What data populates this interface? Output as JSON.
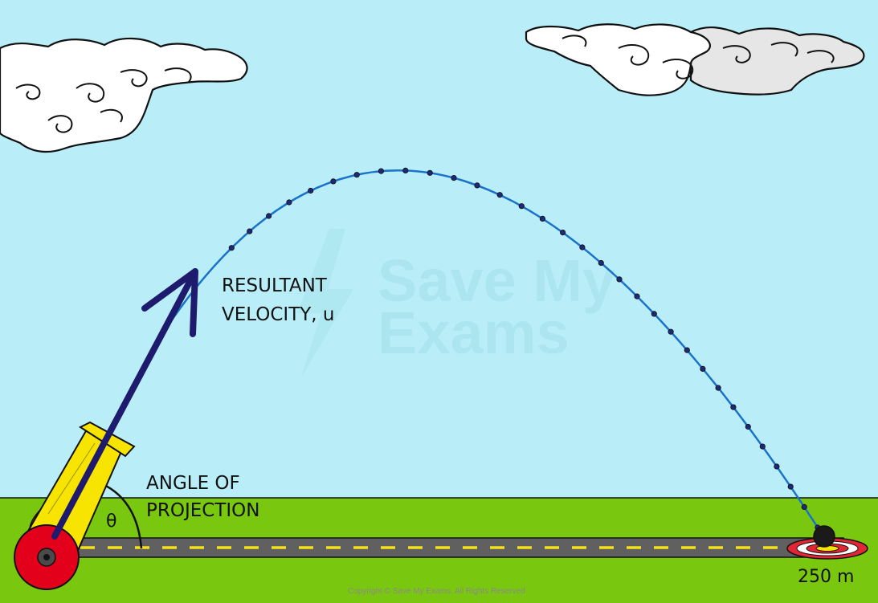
{
  "labels": {
    "velocity_line1": "RESULTANT",
    "velocity_line2": "VELOCITY, u",
    "angle_line1": "ANGLE  OF",
    "angle_line2": "PROJECTION",
    "theta": "θ",
    "distance": "250 m"
  },
  "watermark": {
    "line1": "Save My",
    "line2": "Exams"
  },
  "copyright": "Copyright © Save My Exams. All Rights Reserved",
  "colors": {
    "sky": "#b9eef8",
    "grass": "#7ac70f",
    "road": "#606060",
    "road_dash": "#f4e01c",
    "trajectory": "#1a73c8",
    "trajectory_dot": "#1e2a78",
    "velocity_arrow": "#1e1a6e",
    "cannon_barrel": "#f7e400",
    "cannon_wheel": "#e3001b",
    "target_red": "#e32636"
  }
}
